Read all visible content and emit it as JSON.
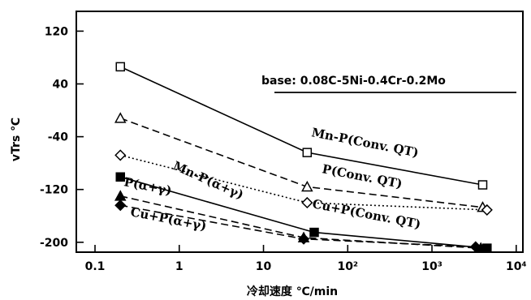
{
  "chart_data": {
    "type": "line",
    "title": "",
    "xlabel": "冷却速度 ℃/min",
    "ylabel": "vTrs ℃",
    "x_scale": "log",
    "xlim": [
      0.06,
      12000
    ],
    "ylim": [
      -215,
      150
    ],
    "x_ticks": [
      {
        "value": 0.1,
        "label": "0.1"
      },
      {
        "value": 1,
        "label": "1"
      },
      {
        "value": 10,
        "label": "10"
      },
      {
        "value": 100,
        "label": "10²"
      },
      {
        "value": 1000,
        "label": "10³"
      },
      {
        "value": 10000,
        "label": "10⁴"
      }
    ],
    "y_ticks": [
      {
        "value": 120,
        "label": "120"
      },
      {
        "value": 40,
        "label": "40"
      },
      {
        "value": -40,
        "label": "-40"
      },
      {
        "value": -120,
        "label": "-120"
      },
      {
        "value": -200,
        "label": "-200"
      }
    ],
    "annotation": "base: 0.08C-5Ni-0.4Cr-0.2Mo",
    "grid": false,
    "series": [
      {
        "name": "Mn-P(Conv. QT)",
        "marker": "open-square",
        "line": "solid",
        "x": [
          0.2,
          33,
          4000
        ],
        "y": [
          66,
          -64,
          -113
        ]
      },
      {
        "name": "P(Conv. QT)",
        "marker": "open-triangle",
        "line": "dashed",
        "x": [
          0.2,
          33,
          4000
        ],
        "y": [
          -12,
          -116,
          -147
        ]
      },
      {
        "name": "Cu+P(Conv. QT)",
        "marker": "open-diamond",
        "line": "dotted",
        "x": [
          0.2,
          33,
          4500
        ],
        "y": [
          -68,
          -140,
          -151
        ]
      },
      {
        "name": "Mn-P(α+γ)",
        "marker": "filled-square",
        "line": "solid",
        "x": [
          0.2,
          40,
          4500
        ],
        "y": [
          -101,
          -185,
          -209
        ]
      },
      {
        "name": "P(α+γ)",
        "marker": "filled-triangle",
        "line": "dashed",
        "x": [
          0.2,
          30,
          3800
        ],
        "y": [
          -130,
          -193,
          -209
        ]
      },
      {
        "name": "Cu+P(α+γ)",
        "marker": "filled-diamond",
        "line": "dashed",
        "x": [
          0.2,
          30,
          3300
        ],
        "y": [
          -144,
          -195,
          -207
        ]
      }
    ]
  }
}
